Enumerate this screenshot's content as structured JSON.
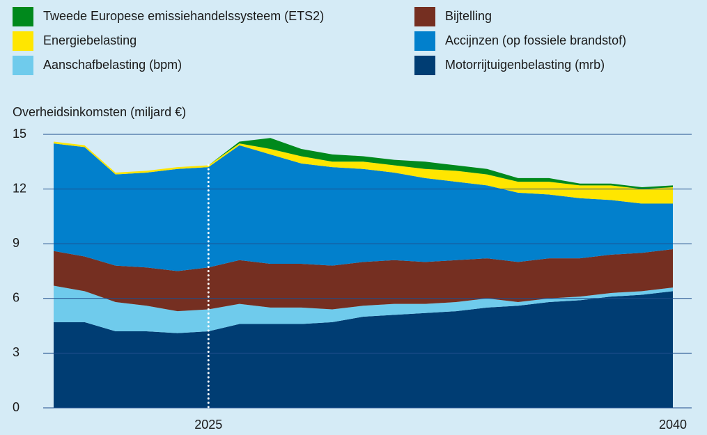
{
  "chart_data": {
    "type": "stacked_area",
    "y_label": "Overheidsinkomsten (miljard €)",
    "x": [
      2020,
      2021,
      2022,
      2023,
      2024,
      2025,
      2026,
      2027,
      2028,
      2029,
      2030,
      2031,
      2032,
      2033,
      2034,
      2035,
      2036,
      2037,
      2038,
      2039,
      2040
    ],
    "xlim": [
      2020,
      2040
    ],
    "xticks": [
      2025,
      2040
    ],
    "ylim": [
      0,
      15
    ],
    "yticks": [
      0,
      3,
      6,
      9,
      12,
      15
    ],
    "grid": true,
    "marker_line_x": 2025,
    "series": [
      {
        "name": "Motorrijtuigenbelasting (mrb)",
        "color": "#003d73",
        "values": [
          4.7,
          4.7,
          4.2,
          4.2,
          4.1,
          4.2,
          4.6,
          4.6,
          4.6,
          4.7,
          5.0,
          5.1,
          5.2,
          5.3,
          5.5,
          5.6,
          5.8,
          5.9,
          6.1,
          6.2,
          6.4
        ]
      },
      {
        "name": "Aanschafbelasting (bpm)",
        "color": "#6fcbec",
        "values": [
          2.0,
          1.7,
          1.6,
          1.4,
          1.2,
          1.2,
          1.1,
          0.9,
          0.9,
          0.7,
          0.6,
          0.6,
          0.5,
          0.5,
          0.5,
          0.2,
          0.2,
          0.2,
          0.2,
          0.2,
          0.2
        ]
      },
      {
        "name": "Bijtelling",
        "color": "#752f21",
        "values": [
          1.9,
          1.9,
          2.0,
          2.1,
          2.2,
          2.3,
          2.4,
          2.4,
          2.4,
          2.4,
          2.4,
          2.4,
          2.3,
          2.3,
          2.2,
          2.2,
          2.2,
          2.1,
          2.1,
          2.1,
          2.1
        ]
      },
      {
        "name": "Accijnzen (op fossiele brandstof)",
        "color": "#0280cc",
        "values": [
          5.9,
          6.0,
          5.0,
          5.2,
          5.6,
          5.5,
          6.3,
          6.0,
          5.5,
          5.4,
          5.1,
          4.8,
          4.6,
          4.3,
          4.0,
          3.8,
          3.5,
          3.3,
          3.0,
          2.7,
          2.5
        ]
      },
      {
        "name": "Energiebelasting",
        "color": "#ffe600",
        "values": [
          0.1,
          0.1,
          0.1,
          0.1,
          0.1,
          0.1,
          0.1,
          0.3,
          0.4,
          0.3,
          0.4,
          0.4,
          0.5,
          0.6,
          0.6,
          0.6,
          0.7,
          0.7,
          0.8,
          0.8,
          0.9
        ]
      },
      {
        "name": "Tweede Europese emissiehandelssysteem (ETS2)",
        "color": "#00891c",
        "values": [
          0,
          0,
          0,
          0,
          0,
          0,
          0.1,
          0.6,
          0.4,
          0.4,
          0.3,
          0.3,
          0.4,
          0.3,
          0.3,
          0.2,
          0.2,
          0.1,
          0.1,
          0.1,
          0.1
        ]
      }
    ]
  }
}
